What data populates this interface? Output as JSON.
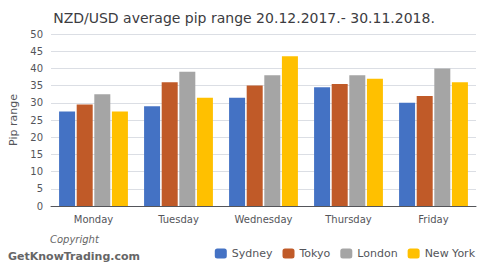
{
  "chart_data": {
    "type": "bar",
    "title": "NZD/USD average pip range 20.12.2017.- 30.11.2018.",
    "y_label": "Pip range",
    "categories": [
      "Monday",
      "Tuesday",
      "Wednesday",
      "Thursday",
      "Friday"
    ],
    "series": [
      {
        "name": "Sydney",
        "color": "#4472C4",
        "values": [
          27.5,
          29.0,
          31.5,
          34.5,
          30.0
        ]
      },
      {
        "name": "Tokyo",
        "color": "#C05A28",
        "values": [
          29.5,
          36.0,
          35.0,
          35.5,
          32.0
        ]
      },
      {
        "name": "London",
        "color": "#A5A5A5",
        "values": [
          32.5,
          39.0,
          38.0,
          38.0,
          40.0
        ]
      },
      {
        "name": "New York",
        "color": "#FFC000",
        "values": [
          27.5,
          31.5,
          43.5,
          37.0,
          36.0
        ]
      }
    ],
    "ylim": [
      0,
      50
    ],
    "yticks": [
      0,
      5,
      10,
      15,
      20,
      25,
      30,
      35,
      40,
      45,
      50
    ],
    "grid": true,
    "legend": "bottom",
    "annotations": [
      "Copyright",
      "GetKnowTrading.com"
    ]
  }
}
